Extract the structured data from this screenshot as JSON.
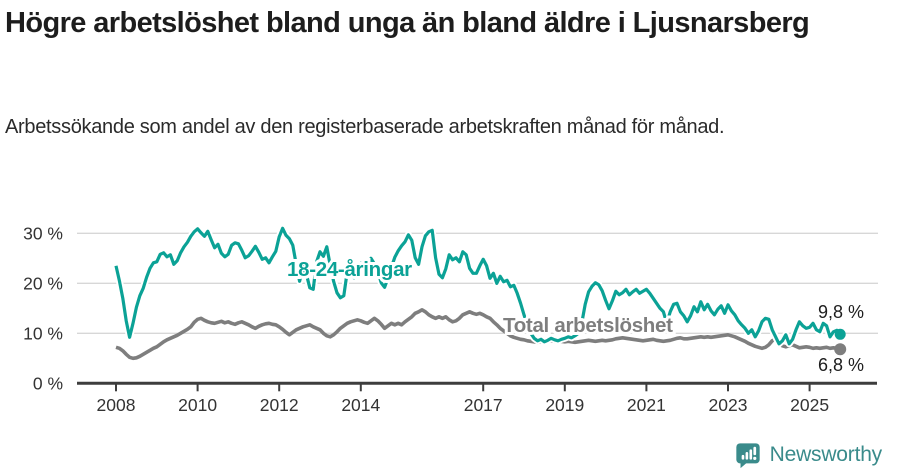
{
  "header": {
    "title": "Högre arbetslöshet bland unga än bland äldre i Ljusnarsberg",
    "subtitle": "Arbetssökande som andel av den registerbaserade arbetskraften månad för månad."
  },
  "footer": {
    "brand": "Newsworthy",
    "brand_color": "#3a8b8b"
  },
  "chart_data": {
    "type": "line",
    "title": "Högre arbetslöshet bland unga än bland äldre i Ljusnarsberg",
    "frequency": "monthly",
    "x_start": "2008-01",
    "x_end": "2025-10",
    "x_tick_years": [
      2008,
      2010,
      2012,
      2014,
      2017,
      2019,
      2021,
      2023,
      2025
    ],
    "y_ticks": [
      {
        "value": 0,
        "label": "0 %"
      },
      {
        "value": 10,
        "label": "10 %"
      },
      {
        "value": 20,
        "label": "20 %"
      },
      {
        "value": 30,
        "label": "30 %"
      }
    ],
    "ylim": [
      0,
      32
    ],
    "grid": true,
    "legend_position": "inline-labels",
    "series": [
      {
        "name": "18-24-åringar",
        "color": "#0ba296",
        "end_label": "9,8 %",
        "values": [
          23.5,
          20.5,
          17.0,
          12.5,
          9.2,
          12.0,
          15.2,
          17.5,
          19.0,
          21.2,
          23.0,
          24.1,
          24.3,
          25.8,
          26.1,
          25.3,
          25.7,
          23.8,
          24.5,
          26.1,
          27.3,
          28.2,
          29.4,
          30.3,
          30.9,
          30.1,
          29.4,
          30.4,
          28.7,
          27.1,
          27.8,
          26.0,
          25.3,
          25.8,
          27.6,
          28.1,
          27.9,
          26.6,
          25.1,
          25.5,
          26.4,
          27.4,
          26.2,
          24.8,
          25.1,
          24.1,
          25.3,
          26.4,
          29.3,
          31.0,
          29.6,
          28.9,
          27.6,
          23.8,
          20.4,
          23.3,
          21.8,
          19.1,
          18.8,
          24.3,
          26.3,
          25.4,
          27.3,
          23.6,
          20.4,
          18.1,
          17.1,
          17.5,
          22.3,
          23.7,
          21.1,
          22.9,
          24.0,
          22.1,
          23.5,
          25.0,
          23.9,
          22.4,
          20.1,
          19.2,
          21.1,
          23.2,
          25.2,
          26.5,
          27.5,
          28.3,
          29.7,
          28.6,
          25.1,
          23.8,
          27.3,
          29.5,
          30.3,
          30.6,
          25.1,
          21.8,
          21.1,
          22.9,
          25.7,
          24.7,
          25.1,
          24.3,
          26.3,
          25.7,
          23.0,
          22.0,
          22.0,
          23.5,
          24.8,
          23.5,
          21.0,
          22.0,
          20.0,
          21.4,
          20.3,
          20.6,
          19.3,
          19.6,
          18.0,
          16.0,
          13.7,
          11.7,
          10.0,
          9.0,
          8.5,
          8.8,
          8.3,
          8.6,
          9.0,
          8.7,
          8.5,
          8.8,
          9.0,
          9.3,
          9.1,
          9.5,
          10.0,
          12.1,
          15.8,
          18.3,
          19.4,
          20.1,
          19.7,
          18.5,
          16.6,
          14.9,
          16.5,
          18.4,
          17.7,
          18.1,
          18.8,
          17.7,
          18.3,
          18.8,
          18.0,
          18.4,
          18.8,
          18.0,
          17.0,
          16.0,
          15.0,
          14.3,
          12.0,
          14.3,
          15.8,
          16.0,
          14.3,
          13.5,
          12.3,
          13.5,
          15.3,
          14.3,
          16.3,
          14.7,
          15.8,
          14.5,
          13.7,
          14.8,
          15.5,
          14.0,
          15.7,
          14.5,
          13.7,
          12.5,
          11.7,
          11.0,
          10.0,
          10.7,
          9.3,
          10.5,
          12.3,
          13.0,
          12.8,
          10.7,
          9.3,
          7.9,
          8.5,
          9.7,
          7.9,
          8.8,
          10.7,
          12.3,
          11.5,
          11.0,
          11.2,
          12.0,
          10.7,
          10.3,
          12.0,
          11.5,
          9.3,
          10.3,
          10.6,
          9.8
        ]
      },
      {
        "name": "Total arbetslöshet",
        "color": "#7e7e7e",
        "end_label": "6,8 %",
        "values": [
          7.2,
          7.0,
          6.5,
          5.8,
          5.2,
          5.0,
          5.1,
          5.4,
          5.8,
          6.2,
          6.6,
          7.0,
          7.3,
          7.8,
          8.3,
          8.7,
          9.0,
          9.3,
          9.6,
          10.0,
          10.4,
          10.8,
          11.3,
          12.2,
          12.8,
          13.0,
          12.6,
          12.3,
          12.1,
          12.0,
          12.2,
          12.4,
          12.1,
          12.3,
          12.0,
          11.8,
          12.1,
          12.3,
          12.0,
          11.7,
          11.3,
          11.0,
          11.4,
          11.7,
          11.9,
          12.0,
          11.8,
          11.7,
          11.3,
          10.8,
          10.2,
          9.7,
          10.2,
          10.7,
          11.0,
          11.3,
          11.5,
          11.7,
          11.3,
          11.0,
          10.7,
          10.0,
          9.5,
          9.3,
          9.7,
          10.3,
          11.0,
          11.5,
          12.0,
          12.3,
          12.5,
          12.7,
          12.5,
          12.2,
          12.0,
          12.5,
          13.0,
          12.5,
          11.8,
          11.0,
          11.5,
          12.0,
          11.7,
          12.0,
          11.7,
          12.3,
          12.8,
          13.3,
          14.0,
          14.3,
          14.7,
          14.3,
          13.7,
          13.3,
          13.0,
          13.3,
          13.0,
          13.3,
          12.7,
          12.3,
          12.5,
          13.0,
          13.7,
          14.0,
          14.3,
          14.0,
          13.8,
          14.0,
          13.7,
          13.3,
          13.0,
          12.3,
          11.7,
          11.0,
          10.5,
          10.0,
          9.5,
          9.2,
          9.0,
          8.8,
          8.7,
          8.5,
          8.4,
          8.3,
          8.2,
          8.3,
          8.4,
          8.3,
          8.5,
          8.4,
          8.3,
          8.4,
          8.3,
          8.4,
          8.3,
          8.2,
          8.3,
          8.4,
          8.5,
          8.6,
          8.5,
          8.4,
          8.5,
          8.6,
          8.5,
          8.6,
          8.7,
          8.9,
          9.0,
          9.1,
          9.0,
          8.9,
          8.8,
          8.7,
          8.6,
          8.5,
          8.6,
          8.7,
          8.8,
          8.6,
          8.5,
          8.4,
          8.5,
          8.6,
          8.8,
          9.0,
          9.1,
          8.9,
          8.9,
          9.0,
          9.1,
          9.2,
          9.3,
          9.2,
          9.3,
          9.2,
          9.3,
          9.4,
          9.5,
          9.6,
          9.7,
          9.5,
          9.3,
          9.0,
          8.7,
          8.4,
          8.0,
          7.7,
          7.4,
          7.2,
          7.0,
          7.2,
          7.7,
          8.5,
          8.9,
          8.3,
          7.5,
          7.3,
          7.5,
          7.7,
          7.4,
          7.1,
          7.2,
          7.3,
          7.2,
          7.0,
          7.1,
          7.0,
          7.1,
          7.2,
          7.0,
          7.1,
          7.0,
          6.8
        ]
      }
    ]
  }
}
